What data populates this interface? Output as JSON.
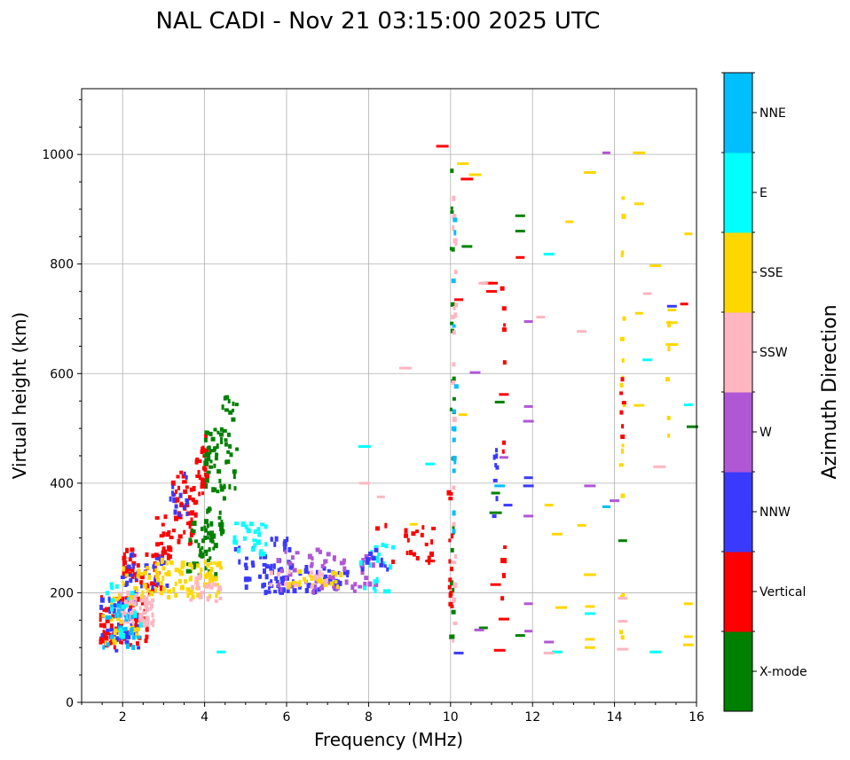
{
  "chart_data": {
    "type": "scatter",
    "title": "NAL CADI - Nov 21 03:15:00 2025 UTC",
    "xlabel": "Frequency (MHz)",
    "ylabel": "Virtual height (km)",
    "xlim": [
      1,
      16
    ],
    "ylim": [
      0,
      1120
    ],
    "xticks": [
      2,
      4,
      6,
      8,
      10,
      12,
      14,
      16
    ],
    "yticks": [
      0,
      200,
      400,
      600,
      800,
      1000
    ],
    "grid": true,
    "colorbar": {
      "title": "Azimuth Direction",
      "categories": [
        {
          "name": "X-mode",
          "color": "#008000"
        },
        {
          "name": "Vertical",
          "color": "#ff0000"
        },
        {
          "name": "NNW",
          "color": "#3a3aff"
        },
        {
          "name": "W",
          "color": "#b057d6"
        },
        {
          "name": "SSW",
          "color": "#ffb6c1"
        },
        {
          "name": "SSE",
          "color": "#ffd700"
        },
        {
          "name": "E",
          "color": "#00ffff"
        },
        {
          "name": "NNE",
          "color": "#00bfff"
        }
      ]
    },
    "clusters": [
      {
        "category": "Vertical",
        "f": [
          1.45,
          2.6
        ],
        "h": [
          100,
          200
        ],
        "count": 70
      },
      {
        "category": "NNW",
        "f": [
          1.45,
          2.4
        ],
        "h": [
          90,
          190
        ],
        "count": 45
      },
      {
        "category": "SSE",
        "f": [
          1.5,
          2.4
        ],
        "h": [
          100,
          200
        ],
        "count": 30
      },
      {
        "category": "SSW",
        "f": [
          1.9,
          2.8
        ],
        "h": [
          140,
          200
        ],
        "count": 55
      },
      {
        "category": "NNE",
        "f": [
          1.5,
          2.4
        ],
        "h": [
          100,
          180
        ],
        "count": 25
      },
      {
        "category": "E",
        "f": [
          1.6,
          2.5
        ],
        "h": [
          110,
          220
        ],
        "count": 20
      },
      {
        "category": "Vertical",
        "f": [
          2.0,
          3.0
        ],
        "h": [
          200,
          280
        ],
        "count": 50
      },
      {
        "category": "NNW",
        "f": [
          2.0,
          3.2
        ],
        "h": [
          200,
          270
        ],
        "count": 30
      },
      {
        "category": "SSE",
        "f": [
          2.0,
          3.2
        ],
        "h": [
          190,
          260
        ],
        "count": 25
      },
      {
        "category": "Vertical",
        "f": [
          2.8,
          3.2
        ],
        "h": [
          260,
          340
        ],
        "count": 20
      },
      {
        "category": "Vertical",
        "f": [
          3.2,
          3.8
        ],
        "h": [
          280,
          420
        ],
        "count": 45
      },
      {
        "category": "NNW",
        "f": [
          3.0,
          3.6
        ],
        "h": [
          340,
          420
        ],
        "count": 15
      },
      {
        "category": "Vertical",
        "f": [
          3.8,
          4.1
        ],
        "h": [
          380,
          495
        ],
        "count": 30
      },
      {
        "category": "X-mode",
        "f": [
          3.6,
          4.3
        ],
        "h": [
          230,
          330
        ],
        "count": 45
      },
      {
        "category": "X-mode",
        "f": [
          4.0,
          4.5
        ],
        "h": [
          300,
          500
        ],
        "count": 60
      },
      {
        "category": "X-mode",
        "f": [
          4.4,
          4.8
        ],
        "h": [
          380,
          560
        ],
        "count": 25
      },
      {
        "category": "SSE",
        "f": [
          2.8,
          4.4
        ],
        "h": [
          190,
          260
        ],
        "count": 70
      },
      {
        "category": "SSW",
        "f": [
          3.4,
          4.4
        ],
        "h": [
          170,
          230
        ],
        "count": 20
      },
      {
        "category": "NNW",
        "f": [
          4.7,
          6.2
        ],
        "h": [
          200,
          300
        ],
        "count": 40
      },
      {
        "category": "E",
        "f": [
          4.7,
          5.5
        ],
        "h": [
          270,
          330
        ],
        "count": 25
      },
      {
        "category": "NNW",
        "f": [
          5.4,
          7.5
        ],
        "h": [
          200,
          250
        ],
        "count": 60
      },
      {
        "category": "W",
        "f": [
          5.8,
          8.2
        ],
        "h": [
          200,
          280
        ],
        "count": 60
      },
      {
        "category": "SSE",
        "f": [
          6.0,
          7.4
        ],
        "h": [
          210,
          240
        ],
        "count": 25
      },
      {
        "category": "SSW",
        "f": [
          5.6,
          7.0
        ],
        "h": [
          210,
          240
        ],
        "count": 15
      },
      {
        "category": "E",
        "f": [
          7.8,
          8.6
        ],
        "h": [
          200,
          290
        ],
        "count": 20
      },
      {
        "category": "Vertical",
        "f": [
          8.0,
          9.7
        ],
        "h": [
          250,
          330
        ],
        "count": 20
      },
      {
        "category": "NNW",
        "f": [
          7.8,
          8.5
        ],
        "h": [
          240,
          280
        ],
        "count": 12
      }
    ],
    "streaks": [
      {
        "category": "X-mode",
        "f": 10.05,
        "h": [
          100,
          1010
        ],
        "count": 22
      },
      {
        "category": "SSW",
        "f": 10.1,
        "h": [
          90,
          1000
        ],
        "count": 26
      },
      {
        "category": "Vertical",
        "f": 10.0,
        "h": [
          170,
          400
        ],
        "count": 14
      },
      {
        "category": "NNE",
        "f": 10.1,
        "h": [
          250,
          940
        ],
        "count": 14
      },
      {
        "category": "Vertical",
        "f": 11.3,
        "h": [
          90,
          760
        ],
        "count": 12
      },
      {
        "category": "NNW",
        "f": 11.1,
        "h": [
          310,
          480
        ],
        "count": 8
      },
      {
        "category": "SSE",
        "f": 14.2,
        "h": [
          100,
          990
        ],
        "count": 18
      },
      {
        "category": "Vertical",
        "f": 14.2,
        "h": [
          480,
          620
        ],
        "count": 6
      },
      {
        "category": "SSE",
        "f": 15.3,
        "h": [
          470,
          720
        ],
        "count": 6
      }
    ],
    "points": [
      {
        "category": "SSE",
        "f": 12.7,
        "h": 173
      },
      {
        "category": "SSE",
        "f": 13.4,
        "h": 175
      },
      {
        "category": "SSE",
        "f": 13.4,
        "h": 115
      },
      {
        "category": "SSE",
        "f": 13.4,
        "h": 967
      },
      {
        "category": "SSE",
        "f": 13.4,
        "h": 233
      },
      {
        "category": "SSE",
        "f": 12.9,
        "h": 877
      },
      {
        "category": "SSE",
        "f": 12.6,
        "h": 307
      },
      {
        "category": "SSE",
        "f": 12.4,
        "h": 360
      },
      {
        "category": "SSE",
        "f": 13.2,
        "h": 323
      },
      {
        "category": "SSE",
        "f": 14.6,
        "h": 1003
      },
      {
        "category": "SSE",
        "f": 14.6,
        "h": 910
      },
      {
        "category": "SSE",
        "f": 14.6,
        "h": 710
      },
      {
        "category": "SSE",
        "f": 14.6,
        "h": 542
      },
      {
        "category": "SSE",
        "f": 15.8,
        "h": 855
      },
      {
        "category": "SSE",
        "f": 15.8,
        "h": 180
      },
      {
        "category": "SSE",
        "f": 15.8,
        "h": 120
      },
      {
        "category": "SSE",
        "f": 15.8,
        "h": 105
      },
      {
        "category": "SSE",
        "f": 15.4,
        "h": 653
      },
      {
        "category": "SSE",
        "f": 15.4,
        "h": 693
      },
      {
        "category": "SSE",
        "f": 15.4,
        "h": 716
      },
      {
        "category": "SSE",
        "f": 15.0,
        "h": 797
      },
      {
        "category": "SSE",
        "f": 10.6,
        "h": 963
      },
      {
        "category": "SSE",
        "f": 10.3,
        "h": 983
      },
      {
        "category": "SSE",
        "f": 10.3,
        "h": 525
      },
      {
        "category": "SSE",
        "f": 9.1,
        "h": 325
      },
      {
        "category": "SSE",
        "f": 12.6,
        "h": 92
      },
      {
        "category": "SSE",
        "f": 13.4,
        "h": 100
      },
      {
        "category": "E",
        "f": 12.4,
        "h": 818
      },
      {
        "category": "E",
        "f": 14.8,
        "h": 625
      },
      {
        "category": "E",
        "f": 15.8,
        "h": 543
      },
      {
        "category": "E",
        "f": 15.0,
        "h": 92
      },
      {
        "category": "E",
        "f": 13.4,
        "h": 162
      },
      {
        "category": "E",
        "f": 12.6,
        "h": 92
      },
      {
        "category": "E",
        "f": 9.5,
        "h": 435
      },
      {
        "category": "E",
        "f": 7.9,
        "h": 467
      },
      {
        "category": "E",
        "f": 4.4,
        "h": 92
      },
      {
        "category": "NNE",
        "f": 11.2,
        "h": 395
      },
      {
        "category": "NNE",
        "f": 13.8,
        "h": 357
      },
      {
        "category": "X-mode",
        "f": 14.2,
        "h": 295
      },
      {
        "category": "X-mode",
        "f": 15.9,
        "h": 503
      },
      {
        "category": "X-mode",
        "f": 11.7,
        "h": 888
      },
      {
        "category": "X-mode",
        "f": 11.7,
        "h": 860
      },
      {
        "category": "X-mode",
        "f": 10.4,
        "h": 832
      },
      {
        "category": "X-mode",
        "f": 11.2,
        "h": 548
      },
      {
        "category": "X-mode",
        "f": 11.1,
        "h": 346
      },
      {
        "category": "X-mode",
        "f": 11.1,
        "h": 382
      },
      {
        "category": "X-mode",
        "f": 11.7,
        "h": 122
      },
      {
        "category": "X-mode",
        "f": 10.8,
        "h": 136
      },
      {
        "category": "Vertical",
        "f": 10.4,
        "h": 955
      },
      {
        "category": "Vertical",
        "f": 10.9,
        "h": 765
      },
      {
        "category": "Vertical",
        "f": 11.0,
        "h": 765
      },
      {
        "category": "Vertical",
        "f": 11.0,
        "h": 750
      },
      {
        "category": "Vertical",
        "f": 11.7,
        "h": 812
      },
      {
        "category": "Vertical",
        "f": 10.2,
        "h": 735
      },
      {
        "category": "Vertical",
        "f": 11.3,
        "h": 562
      },
      {
        "category": "Vertical",
        "f": 11.2,
        "h": 95
      },
      {
        "category": "Vertical",
        "f": 11.3,
        "h": 152
      },
      {
        "category": "Vertical",
        "f": 11.1,
        "h": 215
      },
      {
        "category": "Vertical",
        "f": 15.7,
        "h": 727
      },
      {
        "category": "Vertical",
        "f": 9.5,
        "h": 258
      },
      {
        "category": "Vertical",
        "f": 9.8,
        "h": 1015
      },
      {
        "category": "NNW",
        "f": 15.4,
        "h": 723
      },
      {
        "category": "NNW",
        "f": 11.9,
        "h": 410
      },
      {
        "category": "NNW",
        "f": 11.9,
        "h": 395
      },
      {
        "category": "NNW",
        "f": 10.2,
        "h": 90
      },
      {
        "category": "NNW",
        "f": 11.4,
        "h": 360
      },
      {
        "category": "W",
        "f": 13.8,
        "h": 1003
      },
      {
        "category": "W",
        "f": 11.9,
        "h": 695
      },
      {
        "category": "W",
        "f": 11.9,
        "h": 540
      },
      {
        "category": "W",
        "f": 11.9,
        "h": 513
      },
      {
        "category": "W",
        "f": 11.9,
        "h": 340
      },
      {
        "category": "W",
        "f": 11.9,
        "h": 180
      },
      {
        "category": "W",
        "f": 11.9,
        "h": 130
      },
      {
        "category": "W",
        "f": 12.4,
        "h": 110
      },
      {
        "category": "W",
        "f": 13.4,
        "h": 395
      },
      {
        "category": "W",
        "f": 14.0,
        "h": 368
      },
      {
        "category": "W",
        "f": 10.6,
        "h": 602
      },
      {
        "category": "W",
        "f": 10.7,
        "h": 132
      },
      {
        "category": "W",
        "f": 11.3,
        "h": 447
      },
      {
        "category": "SSW",
        "f": 10.8,
        "h": 765
      },
      {
        "category": "SSW",
        "f": 13.2,
        "h": 677
      },
      {
        "category": "SSW",
        "f": 15.1,
        "h": 430
      },
      {
        "category": "SSW",
        "f": 14.8,
        "h": 746
      },
      {
        "category": "SSW",
        "f": 12.2,
        "h": 703
      },
      {
        "category": "SSW",
        "f": 8.9,
        "h": 610
      },
      {
        "category": "SSW",
        "f": 14.2,
        "h": 190
      },
      {
        "category": "SSW",
        "f": 14.2,
        "h": 148
      },
      {
        "category": "SSW",
        "f": 14.2,
        "h": 97
      },
      {
        "category": "SSW",
        "f": 12.4,
        "h": 90
      },
      {
        "category": "SSW",
        "f": 8.3,
        "h": 375
      },
      {
        "category": "SSW",
        "f": 7.9,
        "h": 400
      }
    ]
  }
}
